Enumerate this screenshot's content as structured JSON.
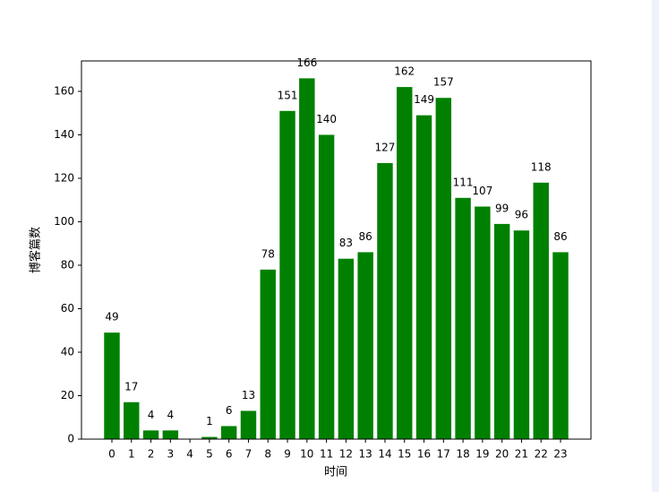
{
  "chart_data": {
    "type": "bar",
    "categories": [
      "0",
      "1",
      "2",
      "3",
      "4",
      "5",
      "6",
      "7",
      "8",
      "9",
      "10",
      "11",
      "12",
      "13",
      "14",
      "15",
      "16",
      "17",
      "18",
      "19",
      "20",
      "21",
      "22",
      "23"
    ],
    "values": [
      49,
      17,
      4,
      4,
      0,
      1,
      6,
      13,
      78,
      151,
      166,
      140,
      83,
      86,
      127,
      162,
      149,
      157,
      111,
      107,
      99,
      96,
      118,
      86
    ],
    "color": "#008000",
    "x_label": "时间",
    "y_label": "博客篇数",
    "ylim": [
      0,
      174
    ],
    "yticks": [
      0,
      20,
      40,
      60,
      80,
      100,
      120,
      140,
      160
    ]
  }
}
